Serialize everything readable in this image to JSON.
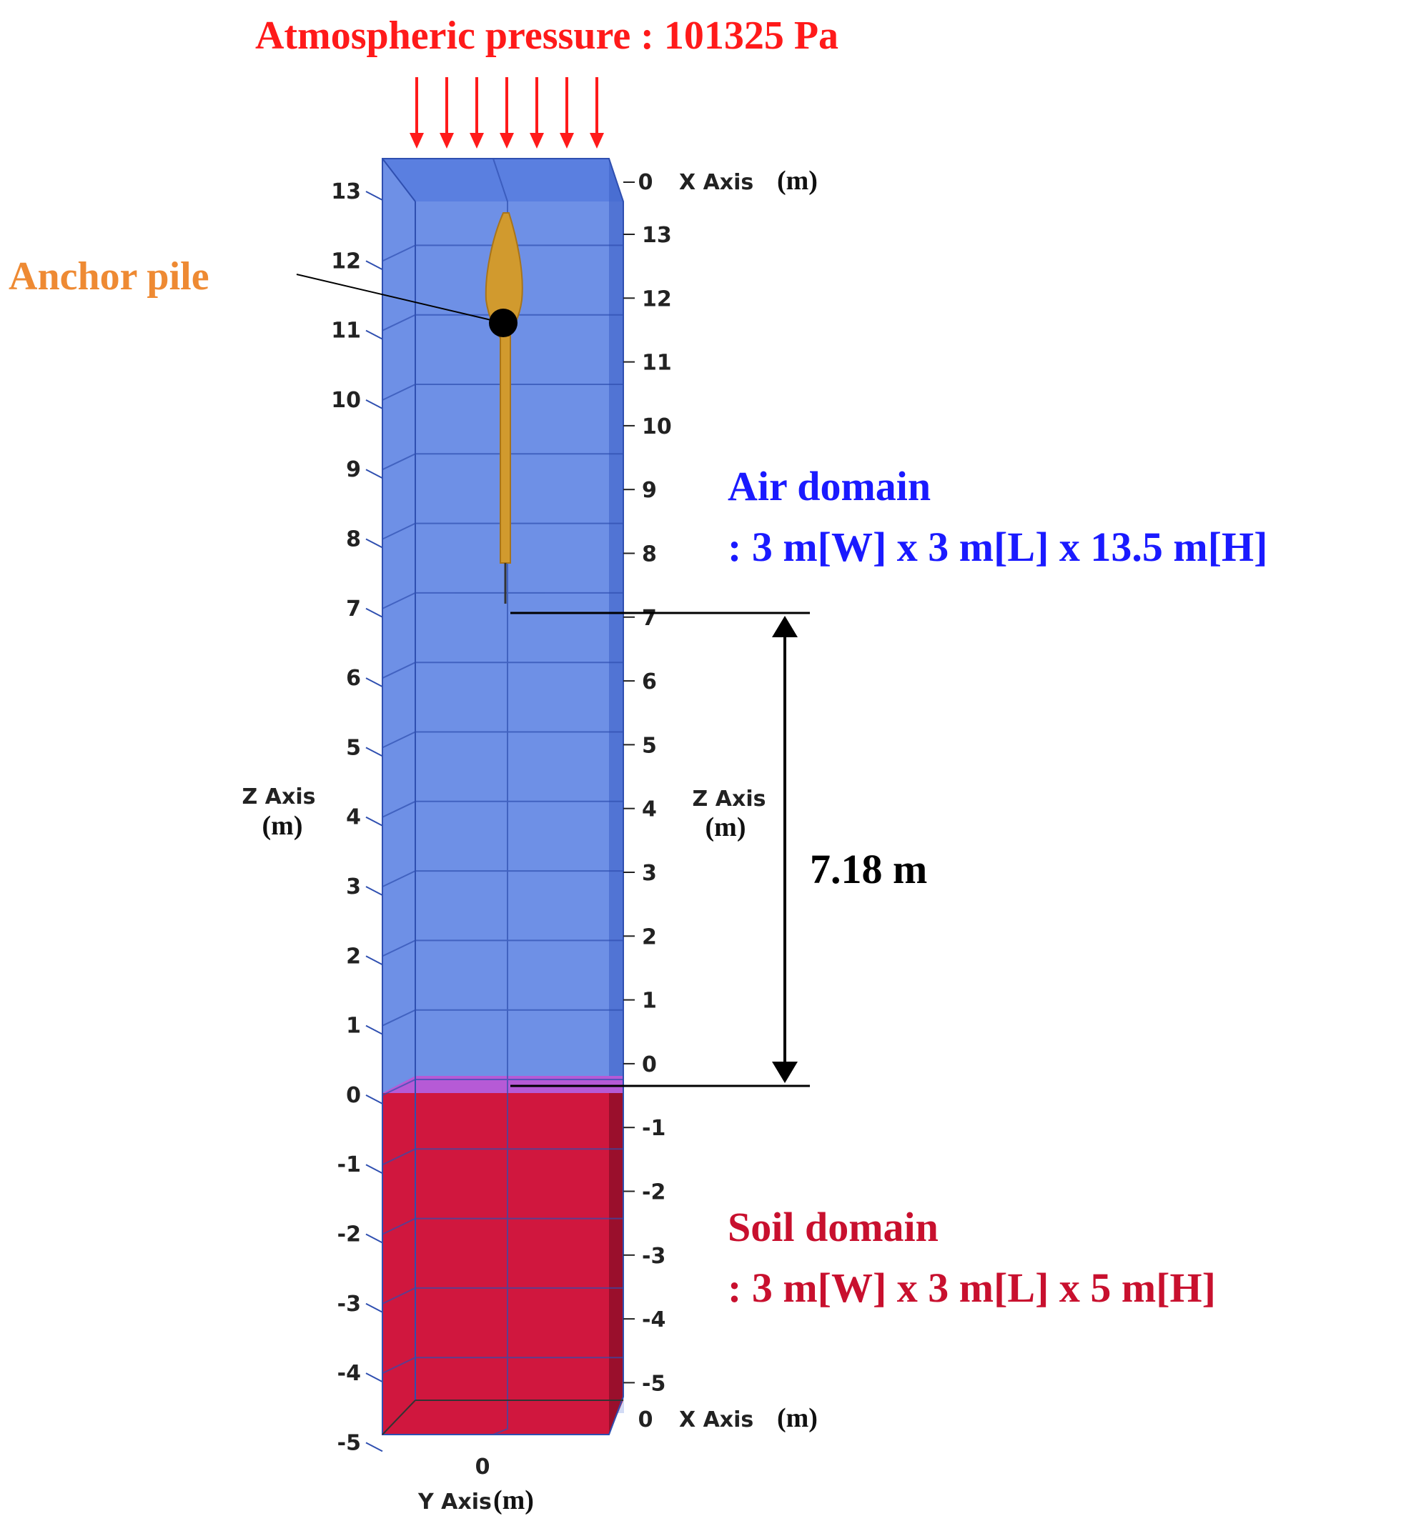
{
  "title": {
    "text": "Atmospheric pressure : 101325 Pa",
    "color": "#ff1a1a"
  },
  "pile": {
    "label": "Anchor pile",
    "color": "#ee8a33",
    "body_color": "#d19a2e"
  },
  "air": {
    "name": "Air domain",
    "dims": ": 3 m[W] x 3 m[L] x 13.5 m[H]",
    "color": "#1a1aff",
    "fill": "#6e90e6"
  },
  "soil": {
    "name": "Soil domain",
    "dims": ": 3 m[W] x 3 m[L] x 5 m[H]",
    "color": "#c8102e",
    "fill": "#d0173e"
  },
  "interface_color": "#b65ad6",
  "dimension": {
    "label": "7.18 m"
  },
  "axes": {
    "z_left_title": "Z Axis",
    "z_right_title": "Z Axis",
    "unit": "(m)",
    "x_title": "X Axis",
    "y_title": "Y Axis",
    "x_top_tick": "0",
    "x_bottom_tick": "0",
    "y_tick": "0",
    "z_left_ticks": [
      "13",
      "12",
      "11",
      "10",
      "9",
      "8",
      "7",
      "6",
      "5",
      "4",
      "3",
      "2",
      "1",
      "0",
      "-1",
      "-2",
      "-3",
      "-4",
      "-5"
    ],
    "z_right_ticks": [
      "13",
      "12",
      "11",
      "10",
      "9",
      "8",
      "7",
      "6",
      "5",
      "4",
      "3",
      "2",
      "1",
      "0",
      "-1",
      "-2",
      "-3",
      "-4",
      "-5"
    ]
  }
}
